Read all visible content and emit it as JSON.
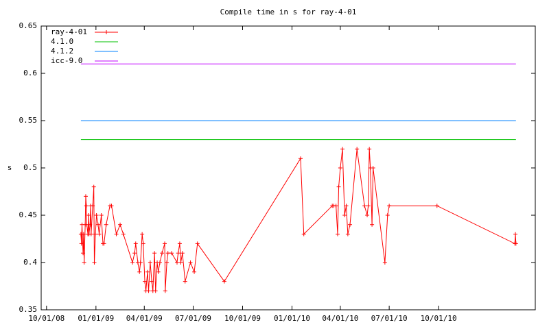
{
  "chart_data": {
    "type": "line",
    "title": "Compile time in s for ray-4-01",
    "y_label": "s",
    "xlim": [
      "2008-09-21",
      "2011-03-30"
    ],
    "xticks": [
      {
        "value": "2008-10-01",
        "label": "10/01/08"
      },
      {
        "value": "2009-01-01",
        "label": "01/01/09"
      },
      {
        "value": "2009-04-01",
        "label": "04/01/09"
      },
      {
        "value": "2009-07-01",
        "label": "07/01/09"
      },
      {
        "value": "2009-10-01",
        "label": "10/01/09"
      },
      {
        "value": "2010-01-01",
        "label": "01/01/10"
      },
      {
        "value": "2010-04-01",
        "label": "04/01/10"
      },
      {
        "value": "2010-07-01",
        "label": "07/01/10"
      },
      {
        "value": "2010-10-01",
        "label": "10/01/10"
      }
    ],
    "ylim": [
      0.35,
      0.65
    ],
    "yticks": [
      0.35,
      0.4,
      0.45,
      0.5,
      0.55,
      0.6,
      0.65
    ],
    "legend": "top-left",
    "series": [
      {
        "name": "ray-4-01",
        "color": "#ff0000",
        "marker": "plus",
        "x": [
          "2008-12-04",
          "2008-12-05",
          "2008-12-06",
          "2008-12-08",
          "2008-12-09",
          "2008-12-10",
          "2008-12-12",
          "2008-12-13",
          "2008-12-14",
          "2008-12-15",
          "2008-12-17",
          "2008-12-18",
          "2008-12-19",
          "2008-12-21",
          "2008-12-22",
          "2008-12-23",
          "2008-12-26",
          "2008-12-28",
          "2008-12-29",
          "2008-12-31",
          "2009-01-02",
          "2009-01-05",
          "2009-01-07",
          "2009-01-11",
          "2009-01-14",
          "2009-01-16",
          "2009-01-20",
          "2009-01-27",
          "2009-01-30",
          "2009-02-08",
          "2009-02-15",
          "2009-02-21",
          "2009-03-10",
          "2009-03-14",
          "2009-03-16",
          "2009-03-20",
          "2009-03-23",
          "2009-03-25",
          "2009-03-28",
          "2009-03-30",
          "2009-04-02",
          "2009-04-04",
          "2009-04-07",
          "2009-04-09",
          "2009-04-12",
          "2009-04-15",
          "2009-04-17",
          "2009-04-20",
          "2009-04-22",
          "2009-04-25",
          "2009-04-27",
          "2009-04-30",
          "2009-05-04",
          "2009-05-09",
          "2009-05-10",
          "2009-05-13",
          "2009-05-15",
          "2009-05-22",
          "2009-06-01",
          "2009-06-03",
          "2009-06-06",
          "2009-06-08",
          "2009-06-11",
          "2009-06-16",
          "2009-06-26",
          "2009-07-03",
          "2009-07-09",
          "2009-08-28",
          "2010-01-17",
          "2010-01-23",
          "2010-03-17",
          "2010-03-20",
          "2010-03-24",
          "2010-03-27",
          "2010-03-29",
          "2010-04-01",
          "2010-04-05",
          "2010-04-09",
          "2010-04-12",
          "2010-04-15",
          "2010-04-19",
          "2010-05-02",
          "2010-05-16",
          "2010-05-21",
          "2010-05-23",
          "2010-05-25",
          "2010-05-27",
          "2010-05-30",
          "2010-06-01",
          "2010-06-23",
          "2010-06-28",
          "2010-07-01",
          "2010-09-28",
          "2011-02-20",
          "2011-02-21",
          "2011-02-22"
        ],
        "values": [
          0.43,
          0.42,
          0.44,
          0.41,
          0.43,
          0.4,
          0.44,
          0.47,
          0.46,
          0.44,
          0.43,
          0.45,
          0.43,
          0.44,
          0.46,
          0.43,
          0.46,
          0.48,
          0.4,
          0.43,
          0.45,
          0.44,
          0.43,
          0.45,
          0.42,
          0.42,
          0.44,
          0.46,
          0.46,
          0.43,
          0.44,
          0.43,
          0.4,
          0.41,
          0.42,
          0.4,
          0.39,
          0.4,
          0.43,
          0.42,
          0.38,
          0.37,
          0.39,
          0.37,
          0.4,
          0.38,
          0.37,
          0.41,
          0.37,
          0.4,
          0.39,
          0.4,
          0.41,
          0.42,
          0.37,
          0.4,
          0.41,
          0.41,
          0.4,
          0.41,
          0.42,
          0.4,
          0.41,
          0.38,
          0.4,
          0.39,
          0.42,
          0.38,
          0.51,
          0.43,
          0.46,
          0.46,
          0.46,
          0.43,
          0.48,
          0.5,
          0.52,
          0.45,
          0.46,
          0.43,
          0.44,
          0.52,
          0.46,
          0.45,
          0.46,
          0.52,
          0.5,
          0.44,
          0.5,
          0.4,
          0.45,
          0.46,
          0.46,
          0.42,
          0.43,
          0.42
        ]
      },
      {
        "name": "4.1.0",
        "color": "#00c000",
        "x": [
          "2008-12-04",
          "2011-02-22"
        ],
        "values": [
          0.53,
          0.53
        ]
      },
      {
        "name": "4.1.2",
        "color": "#0080ff",
        "x": [
          "2008-12-04",
          "2011-02-22"
        ],
        "values": [
          0.55,
          0.55
        ]
      },
      {
        "name": "icc-9.0",
        "color": "#c000ff",
        "x": [
          "2008-12-04",
          "2011-02-22"
        ],
        "values": [
          0.61,
          0.61
        ]
      }
    ]
  }
}
